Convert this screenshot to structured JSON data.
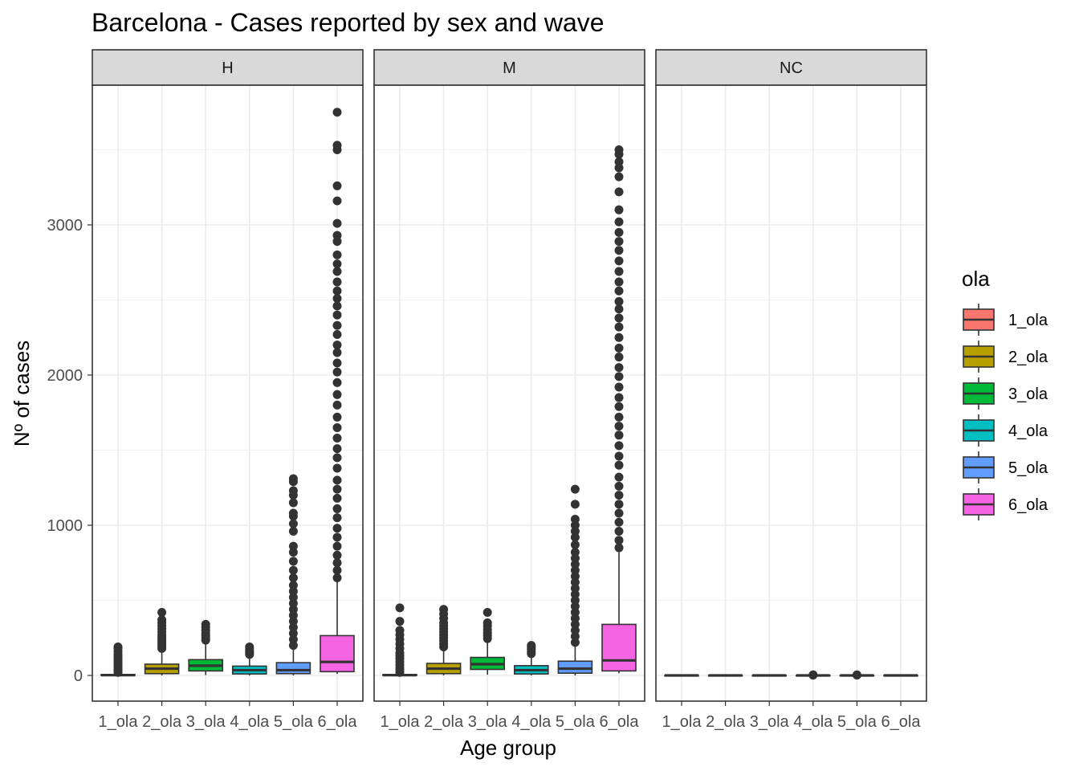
{
  "chart_data": {
    "type": "boxplot",
    "title": "Barcelona - Cases reported by sex and wave",
    "xlabel": "Age group",
    "ylabel": "Nº of cases",
    "ylim": [
      -175,
      3900
    ],
    "yticks": [
      0,
      1000,
      2000,
      3000
    ],
    "categories": [
      "1_ola",
      "2_ola",
      "3_ola",
      "4_ola",
      "5_ola",
      "6_ola"
    ],
    "legend": {
      "title": "ola",
      "position": "right",
      "entries": [
        "1_ola",
        "2_ola",
        "3_ola",
        "4_ola",
        "5_ola",
        "6_ola"
      ]
    },
    "colors": {
      "1_ola": "#F8766D",
      "2_ola": "#B79F00",
      "3_ola": "#00BA38",
      "4_ola": "#00BFC4",
      "5_ola": "#619CFF",
      "6_ola": "#F564E3"
    },
    "grid": true,
    "panels": [
      {
        "label": "H",
        "boxes": [
          {
            "category": "1_ola",
            "min": 0,
            "q1": 0,
            "median": 2,
            "q3": 6,
            "max": 14,
            "outliers": [
              20,
              30,
              40,
              52,
              65,
              80,
              95,
              110,
              125,
              140,
              160,
              180,
              190
            ]
          },
          {
            "category": "2_ola",
            "min": 0,
            "q1": 12,
            "median": 45,
            "q3": 75,
            "max": 170,
            "outliers": [
              180,
              195,
              210,
              225,
              240,
              255,
              270,
              290,
              310,
              330,
              350,
              370,
              420
            ]
          },
          {
            "category": "3_ola",
            "min": 3,
            "q1": 30,
            "median": 65,
            "q3": 105,
            "max": 220,
            "outliers": [
              235,
              250,
              265,
              280,
              300,
              320,
              340
            ]
          },
          {
            "category": "4_ola",
            "min": 0,
            "q1": 10,
            "median": 35,
            "q3": 62,
            "max": 130,
            "outliers": [
              140,
              150,
              160,
              175,
              190
            ]
          },
          {
            "category": "5_ola",
            "min": 0,
            "q1": 12,
            "median": 35,
            "q3": 85,
            "max": 180,
            "outliers": [
              200,
              240,
              280,
              320,
              360,
              400,
              440,
              480,
              520,
              560,
              600,
              650,
              700,
              760,
              820,
              860,
              960,
              1010,
              1060,
              1080,
              1150,
              1200,
              1230,
              1290,
              1310
            ]
          },
          {
            "category": "6_ola",
            "min": 10,
            "q1": 25,
            "median": 90,
            "q3": 265,
            "max": 630,
            "outliers": [
              650,
              700,
              750,
              800,
              860,
              920,
              980,
              1050,
              1110,
              1180,
              1240,
              1300,
              1380,
              1450,
              1510,
              1580,
              1650,
              1720,
              1800,
              1870,
              1950,
              2020,
              2080,
              2150,
              2200,
              2270,
              2330,
              2400,
              2460,
              2510,
              2560,
              2620,
              2690,
              2740,
              2800,
              2890,
              2930,
              3010,
              3160,
              3260,
              3500,
              3530,
              3750
            ]
          }
        ]
      },
      {
        "label": "M",
        "boxes": [
          {
            "category": "1_ola",
            "min": 0,
            "q1": 0,
            "median": 2,
            "q3": 6,
            "max": 14,
            "outliers": [
              20,
              35,
              50,
              70,
              90,
              110,
              130,
              150,
              180,
              210,
              240,
              270,
              300,
              360,
              450
            ]
          },
          {
            "category": "2_ola",
            "min": 0,
            "q1": 12,
            "median": 45,
            "q3": 80,
            "max": 175,
            "outliers": [
              190,
              210,
              230,
              250,
              270,
              290,
              310,
              330,
              350,
              380,
              410,
              440
            ]
          },
          {
            "category": "3_ola",
            "min": 5,
            "q1": 40,
            "median": 75,
            "q3": 120,
            "max": 230,
            "outliers": [
              245,
              265,
              285,
              305,
              330,
              350,
              420
            ]
          },
          {
            "category": "4_ola",
            "min": 0,
            "q1": 10,
            "median": 35,
            "q3": 65,
            "max": 135,
            "outliers": [
              145,
              160,
              175,
              190,
              200
            ]
          },
          {
            "category": "5_ola",
            "min": 0,
            "q1": 15,
            "median": 45,
            "q3": 95,
            "max": 200,
            "outliers": [
              220,
              260,
              300,
              340,
              380,
              420,
              460,
              500,
              540,
              580,
              620,
              660,
              700,
              740,
              780,
              820,
              870,
              920,
              960,
              1000,
              1040,
              1140,
              1240
            ]
          },
          {
            "category": "6_ola",
            "min": 15,
            "q1": 30,
            "median": 100,
            "q3": 340,
            "max": 820,
            "outliers": [
              850,
              900,
              960,
              1020,
              1080,
              1140,
              1200,
              1260,
              1320,
              1400,
              1460,
              1530,
              1600,
              1660,
              1720,
              1790,
              1850,
              1920,
              1990,
              2050,
              2120,
              2180,
              2250,
              2320,
              2380,
              2440,
              2490,
              2560,
              2620,
              2690,
              2760,
              2830,
              2890,
              2950,
              3020,
              3100,
              3220,
              3320,
              3380,
              3420,
              3470,
              3500
            ]
          }
        ]
      },
      {
        "label": "NC",
        "boxes": [
          {
            "category": "1_ola",
            "min": 0,
            "q1": 0,
            "median": 0,
            "q3": 0,
            "max": 0,
            "outliers": []
          },
          {
            "category": "2_ola",
            "min": 0,
            "q1": 0,
            "median": 0,
            "q3": 0,
            "max": 0,
            "outliers": []
          },
          {
            "category": "3_ola",
            "min": 0,
            "q1": 0,
            "median": 0,
            "q3": 0,
            "max": 0,
            "outliers": []
          },
          {
            "category": "4_ola",
            "min": 0,
            "q1": 0,
            "median": 0,
            "q3": 0,
            "max": 0,
            "outliers": [
              2,
              4
            ]
          },
          {
            "category": "5_ola",
            "min": 0,
            "q1": 0,
            "median": 0,
            "q3": 0,
            "max": 0,
            "outliers": [
              2,
              4
            ]
          },
          {
            "category": "6_ola",
            "min": 0,
            "q1": 0,
            "median": 0,
            "q3": 0,
            "max": 0,
            "outliers": []
          }
        ]
      }
    ]
  }
}
